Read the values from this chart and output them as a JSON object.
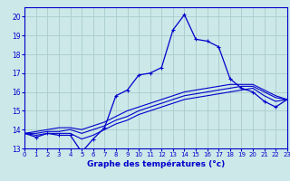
{
  "bg_color": "#cce8e8",
  "grid_color": "#aacccc",
  "line_color": "#0000cc",
  "hours": [
    0,
    1,
    2,
    3,
    4,
    5,
    6,
    7,
    8,
    9,
    10,
    11,
    12,
    13,
    14,
    15,
    16,
    17,
    18,
    19,
    20,
    21,
    22,
    23
  ],
  "temp_main": [
    13.8,
    13.6,
    13.8,
    13.7,
    13.7,
    12.8,
    13.5,
    14.1,
    15.8,
    16.1,
    16.9,
    17.0,
    17.3,
    19.3,
    20.1,
    18.8,
    18.7,
    18.4,
    16.7,
    16.2,
    16.0,
    15.5,
    15.2,
    15.6
  ],
  "temp_line2": [
    13.8,
    13.7,
    13.8,
    13.8,
    13.8,
    13.5,
    13.7,
    14.0,
    14.3,
    14.5,
    14.8,
    15.0,
    15.2,
    15.4,
    15.6,
    15.7,
    15.8,
    15.9,
    16.0,
    16.1,
    16.2,
    15.8,
    15.5,
    15.6
  ],
  "temp_line3": [
    13.8,
    13.8,
    13.9,
    13.9,
    14.0,
    13.8,
    14.0,
    14.2,
    14.5,
    14.7,
    15.0,
    15.2,
    15.4,
    15.6,
    15.8,
    15.9,
    16.0,
    16.1,
    16.2,
    16.3,
    16.3,
    16.0,
    15.7,
    15.6
  ],
  "temp_line4": [
    13.8,
    13.9,
    14.0,
    14.1,
    14.1,
    14.0,
    14.2,
    14.4,
    14.7,
    15.0,
    15.2,
    15.4,
    15.6,
    15.8,
    16.0,
    16.1,
    16.2,
    16.3,
    16.4,
    16.4,
    16.4,
    16.1,
    15.8,
    15.6
  ],
  "xlim": [
    0,
    23
  ],
  "ylim": [
    13,
    20.5
  ],
  "yticks": [
    13,
    14,
    15,
    16,
    17,
    18,
    19,
    20
  ],
  "xticks": [
    0,
    1,
    2,
    3,
    4,
    5,
    6,
    7,
    8,
    9,
    10,
    11,
    12,
    13,
    14,
    15,
    16,
    17,
    18,
    19,
    20,
    21,
    22,
    23
  ],
  "xlabel": "Graphe des températures (°c)",
  "tick_fontsize": 5.0,
  "xlabel_fontsize": 6.5
}
